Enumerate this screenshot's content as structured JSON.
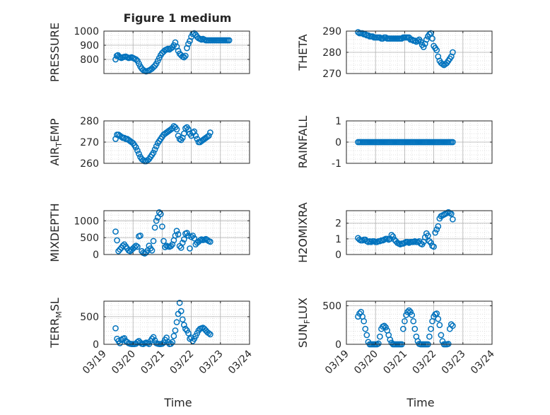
{
  "title": "Figure 1 medium",
  "colors": {
    "marker": "#0072BD",
    "grid": "#b0b0b0",
    "axis": "#262626",
    "background": "#ffffff"
  },
  "x_axis": {
    "label": "Time",
    "ticks": [
      "03/19",
      "03/20",
      "03/21",
      "03/22",
      "03/23",
      "03/24"
    ],
    "range": [
      "03/19",
      "03/24"
    ]
  },
  "chart_data": [
    {
      "type": "scatter",
      "title": "Figure 1 medium",
      "xlabel": "",
      "ylabel": "PRESSURE",
      "ylim": [
        700,
        1000
      ],
      "yticks": [
        800,
        900,
        1000
      ],
      "yticklabels": [
        "800",
        "900",
        "1000"
      ],
      "grid": "on",
      "x": [
        0.4,
        0.44,
        0.48,
        0.52,
        0.56,
        0.6,
        0.65,
        0.7,
        0.75,
        0.8,
        0.85,
        0.9,
        0.95,
        1.0,
        1.05,
        1.1,
        1.15,
        1.2,
        1.25,
        1.3,
        1.35,
        1.4,
        1.45,
        1.5,
        1.55,
        1.6,
        1.65,
        1.7,
        1.75,
        1.8,
        1.85,
        1.9,
        1.95,
        2.0,
        2.05,
        2.1,
        2.15,
        2.2,
        2.25,
        2.3,
        2.35,
        2.4,
        2.45,
        2.5,
        2.55,
        2.6,
        2.65,
        2.7,
        2.75,
        2.8,
        2.85,
        2.9,
        2.95,
        3.0,
        3.05,
        3.1,
        3.15,
        3.2,
        3.25,
        3.3,
        3.35,
        3.4,
        3.45,
        3.5,
        3.55,
        3.6,
        3.65,
        3.7,
        3.75,
        3.8,
        3.85,
        3.9,
        3.95,
        4.0,
        4.05,
        4.1,
        4.15,
        4.2,
        4.25,
        4.3
      ],
      "y": [
        800,
        825,
        830,
        820,
        815,
        810,
        815,
        818,
        820,
        815,
        810,
        812,
        815,
        810,
        805,
        800,
        790,
        770,
        750,
        735,
        725,
        718,
        715,
        718,
        722,
        728,
        735,
        745,
        755,
        770,
        790,
        810,
        830,
        845,
        855,
        865,
        870,
        875,
        870,
        878,
        885,
        900,
        920,
        890,
        860,
        840,
        830,
        820,
        815,
        825,
        880,
        910,
        930,
        960,
        980,
        985,
        975,
        960,
        950,
        945,
        940,
        945,
        940,
        935,
        935,
        935,
        935,
        935,
        935,
        935,
        935,
        935,
        935,
        935,
        935,
        935,
        935,
        935,
        935,
        935
      ]
    },
    {
      "type": "scatter",
      "xlabel": "",
      "ylabel": "THETA",
      "ylim": [
        270,
        290
      ],
      "yticks": [
        270,
        280,
        290
      ],
      "yticklabels": [
        "270",
        "280",
        "290"
      ],
      "grid": "on",
      "x": [
        0.4,
        0.45,
        0.5,
        0.55,
        0.6,
        0.65,
        0.7,
        0.75,
        0.8,
        0.85,
        0.9,
        0.95,
        1.0,
        1.05,
        1.1,
        1.15,
        1.2,
        1.25,
        1.3,
        1.35,
        1.4,
        1.45,
        1.5,
        1.55,
        1.6,
        1.65,
        1.7,
        1.75,
        1.8,
        1.85,
        1.9,
        1.95,
        2.0,
        2.05,
        2.1,
        2.15,
        2.2,
        2.25,
        2.3,
        2.35,
        2.4,
        2.45,
        2.5,
        2.55,
        2.6,
        2.65,
        2.7,
        2.75,
        2.8,
        2.85,
        2.9,
        2.95,
        3.0,
        3.05,
        3.1,
        3.15,
        3.2,
        3.25,
        3.3,
        3.35,
        3.4,
        3.45,
        3.5,
        3.55,
        3.6,
        3.65
      ],
      "y": [
        289.5,
        289,
        289,
        289,
        288.5,
        288.5,
        288,
        288,
        287.5,
        287.5,
        287.5,
        287,
        287,
        287,
        287,
        287,
        286.5,
        286.5,
        287,
        287,
        286.5,
        286.5,
        286.5,
        286.5,
        286.5,
        286.5,
        286.5,
        286.5,
        286.5,
        286.5,
        286.5,
        287,
        287,
        287,
        287,
        287,
        286,
        286,
        285.5,
        285.5,
        285,
        285.5,
        286,
        285,
        283.5,
        282.5,
        284,
        286,
        287.5,
        288.5,
        289,
        286.5,
        283,
        282,
        281,
        278,
        276,
        275,
        274.5,
        274,
        274.5,
        275,
        276,
        277,
        278,
        280
      ]
    },
    {
      "type": "scatter",
      "xlabel": "",
      "ylabel": "AIR_TEMP",
      "ylim": [
        260,
        280
      ],
      "yticks": [
        260,
        270,
        280
      ],
      "yticklabels": [
        "260",
        "270",
        "280"
      ],
      "grid": "on",
      "x": [
        0.4,
        0.45,
        0.5,
        0.55,
        0.6,
        0.65,
        0.7,
        0.75,
        0.8,
        0.85,
        0.9,
        0.95,
        1.0,
        1.05,
        1.1,
        1.15,
        1.2,
        1.25,
        1.3,
        1.35,
        1.4,
        1.45,
        1.5,
        1.55,
        1.6,
        1.65,
        1.7,
        1.75,
        1.8,
        1.85,
        1.9,
        1.95,
        2.0,
        2.05,
        2.1,
        2.15,
        2.2,
        2.25,
        2.3,
        2.35,
        2.4,
        2.45,
        2.5,
        2.55,
        2.6,
        2.65,
        2.7,
        2.75,
        2.8,
        2.85,
        2.9,
        2.95,
        3.0,
        3.05,
        3.1,
        3.15,
        3.2,
        3.25,
        3.3,
        3.35,
        3.4,
        3.45,
        3.5,
        3.55,
        3.6,
        3.65
      ],
      "y": [
        271.5,
        273.5,
        273.5,
        273,
        272.5,
        272,
        272,
        271.5,
        271.5,
        271,
        270.5,
        270,
        269.5,
        268.5,
        267.5,
        266,
        264.5,
        263,
        262,
        261.5,
        261,
        261,
        261.5,
        262,
        263,
        264,
        265,
        266.5,
        268,
        269.5,
        270.5,
        271.5,
        272.5,
        273.5,
        274,
        274.5,
        275,
        275.5,
        276,
        276.5,
        277.5,
        277,
        276,
        273,
        271.5,
        271,
        272,
        274,
        276.5,
        277,
        276,
        274,
        273,
        274.5,
        275,
        273,
        271.5,
        270,
        270,
        270.5,
        271,
        271.5,
        272,
        272.5,
        273,
        274.5
      ]
    },
    {
      "type": "scatter",
      "xlabel": "",
      "ylabel": "RAINFALL",
      "ylim": [
        -1,
        1
      ],
      "yticks": [
        -1,
        0,
        1
      ],
      "yticklabels": [
        "-1",
        "0",
        "1"
      ],
      "grid": "on",
      "x": [
        0.4,
        0.45,
        0.5,
        0.55,
        0.6,
        0.65,
        0.7,
        0.75,
        0.8,
        0.85,
        0.9,
        0.95,
        1.0,
        1.05,
        1.1,
        1.15,
        1.2,
        1.25,
        1.3,
        1.35,
        1.4,
        1.45,
        1.5,
        1.55,
        1.6,
        1.65,
        1.7,
        1.75,
        1.8,
        1.85,
        1.9,
        1.95,
        2.0,
        2.05,
        2.1,
        2.15,
        2.2,
        2.25,
        2.3,
        2.35,
        2.4,
        2.45,
        2.5,
        2.55,
        2.6,
        2.65,
        2.7,
        2.75,
        2.8,
        2.85,
        2.9,
        2.95,
        3.0,
        3.05,
        3.1,
        3.15,
        3.2,
        3.25,
        3.3,
        3.35,
        3.4,
        3.45,
        3.5,
        3.55,
        3.6,
        3.65
      ],
      "y": [
        0,
        0,
        0,
        0,
        0,
        0,
        0,
        0,
        0,
        0,
        0,
        0,
        0,
        0,
        0,
        0,
        0,
        0,
        0,
        0,
        0,
        0,
        0,
        0,
        0,
        0,
        0,
        0,
        0,
        0,
        0,
        0,
        0,
        0,
        0,
        0,
        0,
        0,
        0,
        0,
        0,
        0,
        0,
        0,
        0,
        0,
        0,
        0,
        0,
        0,
        0,
        0,
        0,
        0,
        0,
        0,
        0,
        0,
        0,
        0,
        0,
        0,
        0,
        0,
        0,
        0
      ]
    },
    {
      "type": "scatter",
      "xlabel": "",
      "ylabel": "MIXDEPTH",
      "ylim": [
        0,
        1300
      ],
      "yticks": [
        0,
        500,
        1000
      ],
      "yticklabels": [
        "0",
        "500",
        "1000"
      ],
      "grid": "on",
      "x": [
        0.4,
        0.45,
        0.5,
        0.55,
        0.6,
        0.65,
        0.7,
        0.75,
        0.8,
        0.85,
        0.9,
        0.95,
        1.0,
        1.05,
        1.1,
        1.15,
        1.2,
        1.25,
        1.3,
        1.35,
        1.4,
        1.45,
        1.5,
        1.55,
        1.6,
        1.65,
        1.7,
        1.75,
        1.8,
        1.85,
        1.9,
        1.95,
        2.0,
        2.05,
        2.1,
        2.15,
        2.2,
        2.25,
        2.3,
        2.35,
        2.4,
        2.45,
        2.5,
        2.55,
        2.6,
        2.65,
        2.7,
        2.75,
        2.8,
        2.85,
        2.9,
        2.95,
        3.0,
        3.05,
        3.1,
        3.15,
        3.2,
        3.25,
        3.3,
        3.35,
        3.4,
        3.45,
        3.5,
        3.55,
        3.6,
        3.65
      ],
      "y": [
        680,
        420,
        100,
        150,
        200,
        260,
        300,
        240,
        180,
        120,
        100,
        140,
        180,
        220,
        260,
        230,
        540,
        560,
        100,
        50,
        30,
        60,
        120,
        260,
        180,
        120,
        400,
        800,
        1000,
        1100,
        1250,
        1200,
        830,
        400,
        220,
        260,
        240,
        230,
        250,
        300,
        420,
        560,
        700,
        600,
        250,
        200,
        350,
        450,
        620,
        640,
        560,
        180,
        520,
        560,
        480,
        300,
        350,
        380,
        420,
        450,
        430,
        440,
        460,
        430,
        400,
        380
      ]
    },
    {
      "type": "scatter",
      "xlabel": "",
      "ylabel": "H2OMIXRA",
      "ylim": [
        0,
        2.8
      ],
      "yticks": [
        0,
        1,
        2
      ],
      "yticklabels": [
        "0",
        "1",
        "2"
      ],
      "grid": "on",
      "x": [
        0.4,
        0.45,
        0.5,
        0.55,
        0.6,
        0.65,
        0.7,
        0.75,
        0.8,
        0.85,
        0.9,
        0.95,
        1.0,
        1.05,
        1.1,
        1.15,
        1.2,
        1.25,
        1.3,
        1.35,
        1.4,
        1.45,
        1.5,
        1.55,
        1.6,
        1.65,
        1.7,
        1.75,
        1.8,
        1.85,
        1.9,
        1.95,
        2.0,
        2.05,
        2.1,
        2.15,
        2.2,
        2.25,
        2.3,
        2.35,
        2.4,
        2.45,
        2.5,
        2.55,
        2.6,
        2.65,
        2.7,
        2.75,
        2.8,
        2.85,
        2.9,
        2.95,
        3.0,
        3.05,
        3.1,
        3.15,
        3.2,
        3.25,
        3.3,
        3.35,
        3.4,
        3.45,
        3.5,
        3.55,
        3.6,
        3.65
      ],
      "y": [
        1.05,
        0.95,
        0.9,
        0.9,
        0.95,
        0.95,
        0.85,
        0.8,
        0.85,
        0.8,
        0.85,
        0.85,
        0.8,
        0.8,
        0.85,
        0.85,
        0.9,
        0.9,
        0.95,
        1.0,
        1.0,
        0.95,
        1.0,
        1.25,
        1.15,
        0.95,
        0.85,
        0.75,
        0.7,
        0.65,
        0.7,
        0.7,
        0.75,
        0.8,
        0.8,
        0.75,
        0.8,
        0.8,
        0.8,
        0.85,
        0.8,
        0.8,
        0.85,
        0.7,
        0.65,
        0.8,
        1.1,
        1.35,
        1.2,
        0.85,
        0.75,
        0.55,
        0.5,
        1.4,
        1.6,
        1.8,
        2.3,
        2.45,
        2.5,
        2.55,
        2.6,
        2.65,
        2.7,
        2.65,
        2.6,
        2.25
      ]
    },
    {
      "type": "scatter",
      "xlabel": "",
      "ylabel": "TERR_MSL",
      "ylim": [
        0,
        780
      ],
      "yticks": [
        0,
        500
      ],
      "yticklabels": [
        "0",
        "500"
      ],
      "grid": "on",
      "x": [
        0.4,
        0.45,
        0.5,
        0.55,
        0.6,
        0.65,
        0.7,
        0.75,
        0.8,
        0.85,
        0.9,
        0.95,
        1.0,
        1.05,
        1.1,
        1.15,
        1.2,
        1.25,
        1.3,
        1.35,
        1.4,
        1.45,
        1.5,
        1.55,
        1.6,
        1.65,
        1.7,
        1.75,
        1.8,
        1.85,
        1.9,
        1.95,
        2.0,
        2.05,
        2.1,
        2.15,
        2.2,
        2.25,
        2.3,
        2.35,
        2.4,
        2.45,
        2.5,
        2.55,
        2.6,
        2.65,
        2.7,
        2.75,
        2.8,
        2.85,
        2.9,
        2.95,
        3.0,
        3.05,
        3.1,
        3.15,
        3.2,
        3.25,
        3.3,
        3.35,
        3.4,
        3.45,
        3.5,
        3.55,
        3.6,
        3.65
      ],
      "y": [
        290,
        100,
        60,
        20,
        80,
        100,
        110,
        60,
        40,
        20,
        10,
        5,
        5,
        5,
        10,
        40,
        60,
        30,
        10,
        5,
        20,
        30,
        20,
        5,
        60,
        100,
        130,
        70,
        20,
        10,
        5,
        5,
        10,
        30,
        80,
        120,
        40,
        5,
        10,
        40,
        150,
        250,
        400,
        550,
        750,
        600,
        450,
        350,
        280,
        250,
        200,
        100,
        120,
        60,
        100,
        150,
        200,
        250,
        280,
        290,
        300,
        280,
        250,
        220,
        200,
        180
      ]
    },
    {
      "type": "scatter",
      "xlabel": "",
      "ylabel": "SUN_FLUX",
      "ylim": [
        0,
        560
      ],
      "yticks": [
        0,
        500
      ],
      "yticklabels": [
        "0",
        "500"
      ],
      "grid": "on",
      "x": [
        0.4,
        0.45,
        0.5,
        0.55,
        0.6,
        0.65,
        0.7,
        0.75,
        0.8,
        0.85,
        0.9,
        0.95,
        1.0,
        1.05,
        1.1,
        1.15,
        1.2,
        1.25,
        1.3,
        1.35,
        1.4,
        1.45,
        1.5,
        1.55,
        1.6,
        1.65,
        1.7,
        1.75,
        1.8,
        1.85,
        1.9,
        1.95,
        2.0,
        2.05,
        2.1,
        2.15,
        2.2,
        2.25,
        2.3,
        2.35,
        2.4,
        2.45,
        2.5,
        2.55,
        2.6,
        2.65,
        2.7,
        2.75,
        2.8,
        2.85,
        2.9,
        2.95,
        3.0,
        3.05,
        3.1,
        3.15,
        3.2,
        3.25,
        3.3,
        3.35,
        3.4,
        3.45,
        3.5,
        3.55,
        3.6,
        3.65
      ],
      "y": [
        360,
        400,
        420,
        360,
        300,
        200,
        120,
        30,
        0,
        0,
        0,
        0,
        0,
        0,
        10,
        100,
        200,
        230,
        240,
        220,
        180,
        120,
        60,
        20,
        0,
        0,
        0,
        0,
        0,
        0,
        0,
        200,
        300,
        380,
        420,
        440,
        420,
        380,
        300,
        200,
        100,
        40,
        5,
        0,
        0,
        0,
        0,
        0,
        0,
        100,
        200,
        300,
        360,
        390,
        400,
        330,
        250,
        120,
        40,
        0,
        0,
        0,
        5,
        200,
        260,
        240
      ]
    }
  ]
}
